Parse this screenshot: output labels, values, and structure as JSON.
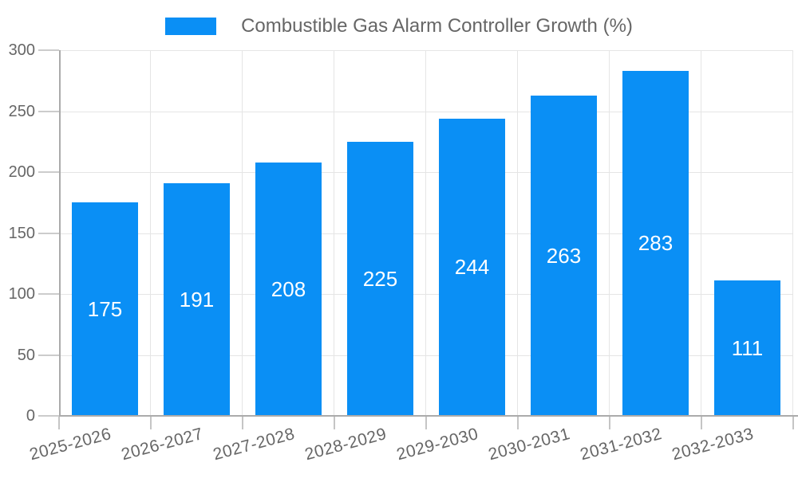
{
  "chart_data": {
    "type": "bar",
    "legend": "Combustible Gas Alarm Controller Growth (%)",
    "legend_position": "top",
    "categories": [
      "2025-2026",
      "2026-2027",
      "2027-2028",
      "2028-2029",
      "2029-2030",
      "2030-2031",
      "2031-2032",
      "2032-2033"
    ],
    "values": [
      175,
      191,
      208,
      225,
      244,
      263,
      283,
      111
    ],
    "value_labels": [
      "175",
      "191",
      "208",
      "225",
      "244",
      "263",
      "283",
      "111"
    ],
    "y_ticks": [
      0,
      50,
      100,
      150,
      200,
      250,
      300
    ],
    "ylim": [
      0,
      300
    ],
    "grid": true,
    "xlabel": "",
    "ylabel": "",
    "bar_color": "#0a8ff5",
    "value_label_color": "#ffffff",
    "axis_text_color": "#666666",
    "grid_color": "#e5e5e5",
    "axis_line_color": "#ababab"
  }
}
